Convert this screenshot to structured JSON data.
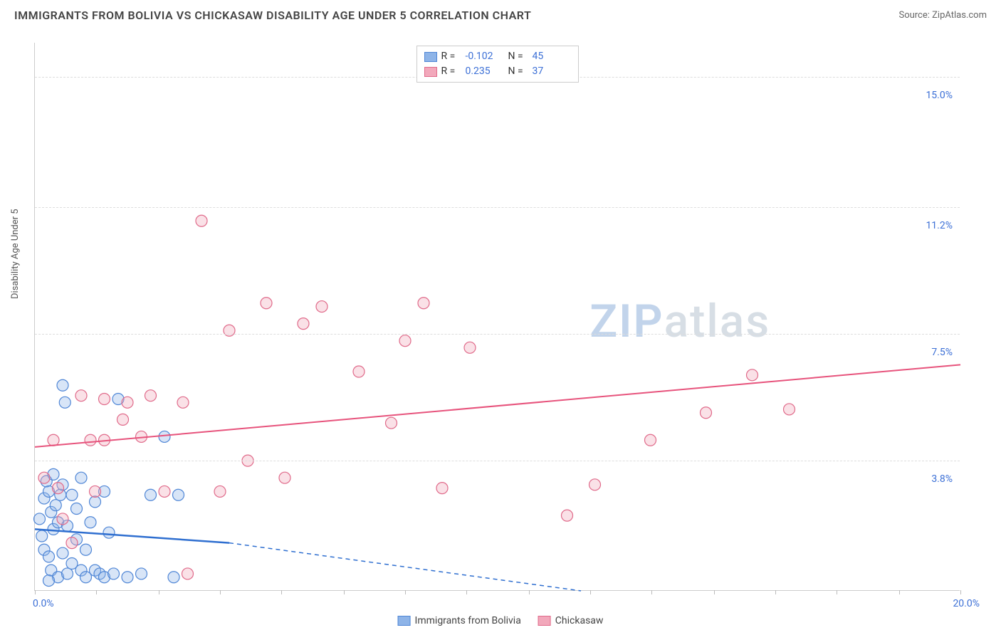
{
  "header": {
    "title": "IMMIGRANTS FROM BOLIVIA VS CHICKASAW DISABILITY AGE UNDER 5 CORRELATION CHART",
    "source_prefix": "Source: ",
    "source_name": "ZipAtlas.com"
  },
  "chart": {
    "type": "scatter",
    "y_axis_label": "Disability Age Under 5",
    "xlim": [
      0,
      20
    ],
    "ylim": [
      0,
      16
    ],
    "x_min_label": "0.0%",
    "x_max_label": "20.0%",
    "x_tick_positions": [
      0,
      1.33,
      2.67,
      4.0,
      5.33,
      6.67,
      8.0,
      9.33,
      10.67,
      12.0,
      13.33,
      14.67,
      16.0,
      17.33,
      18.67,
      20.0
    ],
    "y_gridlines": [
      {
        "value": 15.0,
        "label": "15.0%"
      },
      {
        "value": 11.2,
        "label": "11.2%"
      },
      {
        "value": 7.5,
        "label": "7.5%"
      },
      {
        "value": 3.8,
        "label": "3.8%"
      }
    ],
    "background_color": "#ffffff",
    "grid_color": "#dddddd",
    "axis_color": "#cccccc",
    "label_color": "#3b6fd6",
    "marker_radius": 8,
    "marker_fill_opacity": 0.35,
    "marker_stroke_width": 1.2,
    "series": [
      {
        "name": "Immigrants from Bolivia",
        "color_fill": "#8eb4e8",
        "color_stroke": "#4f86d6",
        "R": "-0.102",
        "N": "45",
        "trend": {
          "x1": 0,
          "y1": 1.8,
          "x2": 4.2,
          "y2": 1.4,
          "dash_x2": 11.8,
          "dash_y2": 0.0,
          "color": "#2f6fd0",
          "width": 2.5
        },
        "points": [
          [
            0.1,
            2.1
          ],
          [
            0.15,
            1.6
          ],
          [
            0.2,
            1.2
          ],
          [
            0.2,
            2.7
          ],
          [
            0.25,
            3.2
          ],
          [
            0.3,
            1.0
          ],
          [
            0.3,
            2.9
          ],
          [
            0.35,
            2.3
          ],
          [
            0.35,
            0.6
          ],
          [
            0.4,
            3.4
          ],
          [
            0.4,
            1.8
          ],
          [
            0.45,
            2.5
          ],
          [
            0.5,
            0.4
          ],
          [
            0.5,
            2.0
          ],
          [
            0.55,
            2.8
          ],
          [
            0.6,
            1.1
          ],
          [
            0.6,
            3.1
          ],
          [
            0.7,
            0.5
          ],
          [
            0.7,
            1.9
          ],
          [
            0.8,
            2.8
          ],
          [
            0.8,
            0.8
          ],
          [
            0.9,
            1.5
          ],
          [
            0.9,
            2.4
          ],
          [
            1.0,
            0.6
          ],
          [
            1.0,
            3.3
          ],
          [
            1.1,
            1.2
          ],
          [
            1.1,
            0.4
          ],
          [
            1.2,
            2.0
          ],
          [
            1.3,
            0.6
          ],
          [
            1.3,
            2.6
          ],
          [
            1.4,
            0.5
          ],
          [
            1.5,
            0.4
          ],
          [
            1.5,
            2.9
          ],
          [
            1.6,
            1.7
          ],
          [
            1.7,
            0.5
          ],
          [
            1.8,
            5.6
          ],
          [
            0.6,
            6.0
          ],
          [
            0.65,
            5.5
          ],
          [
            2.0,
            0.4
          ],
          [
            2.3,
            0.5
          ],
          [
            2.5,
            2.8
          ],
          [
            2.8,
            4.5
          ],
          [
            3.0,
            0.4
          ],
          [
            3.1,
            2.8
          ],
          [
            0.3,
            0.3
          ]
        ]
      },
      {
        "name": "Chickasaw",
        "color_fill": "#f2a8bb",
        "color_stroke": "#e06a8a",
        "R": "0.235",
        "N": "37",
        "trend": {
          "x1": 0,
          "y1": 4.2,
          "x2": 20,
          "y2": 6.6,
          "color": "#e7537c",
          "width": 2
        },
        "points": [
          [
            0.2,
            3.3
          ],
          [
            0.4,
            4.4
          ],
          [
            0.5,
            3.0
          ],
          [
            0.6,
            2.1
          ],
          [
            0.8,
            1.4
          ],
          [
            1.0,
            5.7
          ],
          [
            1.2,
            4.4
          ],
          [
            1.3,
            2.9
          ],
          [
            1.5,
            5.6
          ],
          [
            1.5,
            4.4
          ],
          [
            1.9,
            5.0
          ],
          [
            2.0,
            5.5
          ],
          [
            2.3,
            4.5
          ],
          [
            2.5,
            5.7
          ],
          [
            2.8,
            2.9
          ],
          [
            3.2,
            5.5
          ],
          [
            3.3,
            0.5
          ],
          [
            3.6,
            10.8
          ],
          [
            4.0,
            2.9
          ],
          [
            4.2,
            7.6
          ],
          [
            4.6,
            3.8
          ],
          [
            5.0,
            8.4
          ],
          [
            5.4,
            3.3
          ],
          [
            5.8,
            7.8
          ],
          [
            6.2,
            8.3
          ],
          [
            7.0,
            6.4
          ],
          [
            7.7,
            4.9
          ],
          [
            8.0,
            7.3
          ],
          [
            8.4,
            8.4
          ],
          [
            8.8,
            3.0
          ],
          [
            9.4,
            7.1
          ],
          [
            11.5,
            2.2
          ],
          [
            12.1,
            3.1
          ],
          [
            13.3,
            4.4
          ],
          [
            14.5,
            5.2
          ],
          [
            15.5,
            6.3
          ],
          [
            16.3,
            5.3
          ]
        ]
      }
    ]
  },
  "legend_top": {
    "r_label": "R =",
    "n_label": "N ="
  },
  "watermark": {
    "zip": "ZIP",
    "atlas": "atlas"
  }
}
